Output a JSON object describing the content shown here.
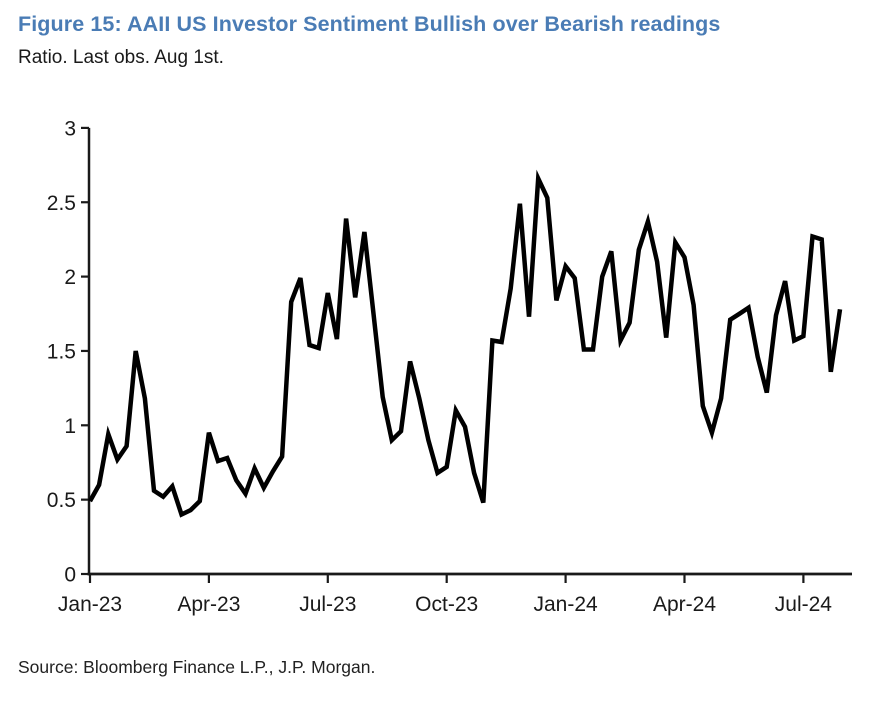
{
  "figure": {
    "title": "Figure 15: AAII US Investor Sentiment Bullish over Bearish readings",
    "subtitle": "Ratio. Last obs. Aug 1st.",
    "source": "Source: Bloomberg Finance L.P., J.P. Morgan.",
    "title_color": "#4a7cb5",
    "text_color": "#1a1a1a",
    "axis_color": "#1a1a1a",
    "line_color": "#000000"
  },
  "chart_data": {
    "type": "line",
    "title": "Figure 15: AAII US Investor Sentiment Bullish over Bearish readings",
    "subtitle": "Ratio. Last obs. Aug 1st.",
    "xlabel": "",
    "ylabel": "Ratio",
    "ylim": [
      0,
      3
    ],
    "yticks": [
      0,
      0.5,
      1,
      1.5,
      2,
      2.5,
      3
    ],
    "ytick_labels": [
      "0",
      "0.5",
      "1",
      "1.5",
      "2",
      "2.5",
      "3"
    ],
    "xtick_labels": [
      "Jan-23",
      "Apr-23",
      "Jul-23",
      "Oct-23",
      "Jan-24",
      "Apr-24",
      "Jul-24"
    ],
    "xtick_week_indices": [
      0,
      13,
      26,
      39,
      52,
      65,
      78
    ],
    "grid": false,
    "legend_position": "none",
    "series": [
      {
        "name": "AAII US Investor Sentiment Bullish over Bearish ratio",
        "x": [
          "2023-01-05",
          "2023-01-12",
          "2023-01-19",
          "2023-01-26",
          "2023-02-02",
          "2023-02-09",
          "2023-02-16",
          "2023-02-23",
          "2023-03-02",
          "2023-03-09",
          "2023-03-16",
          "2023-03-23",
          "2023-03-30",
          "2023-04-06",
          "2023-04-13",
          "2023-04-20",
          "2023-04-27",
          "2023-05-04",
          "2023-05-11",
          "2023-05-18",
          "2023-05-25",
          "2023-06-01",
          "2023-06-08",
          "2023-06-15",
          "2023-06-22",
          "2023-06-29",
          "2023-07-06",
          "2023-07-13",
          "2023-07-20",
          "2023-07-27",
          "2023-08-03",
          "2023-08-10",
          "2023-08-17",
          "2023-08-24",
          "2023-08-31",
          "2023-09-07",
          "2023-09-14",
          "2023-09-21",
          "2023-09-28",
          "2023-10-05",
          "2023-10-12",
          "2023-10-19",
          "2023-10-26",
          "2023-11-02",
          "2023-11-09",
          "2023-11-16",
          "2023-11-23",
          "2023-11-30",
          "2023-12-07",
          "2023-12-14",
          "2023-12-21",
          "2023-12-28",
          "2024-01-04",
          "2024-01-11",
          "2024-01-18",
          "2024-01-25",
          "2024-02-01",
          "2024-02-08",
          "2024-02-15",
          "2024-02-22",
          "2024-02-29",
          "2024-03-07",
          "2024-03-14",
          "2024-03-21",
          "2024-03-28",
          "2024-04-04",
          "2024-04-11",
          "2024-04-18",
          "2024-04-25",
          "2024-05-02",
          "2024-05-09",
          "2024-05-16",
          "2024-05-23",
          "2024-05-30",
          "2024-06-06",
          "2024-06-13",
          "2024-06-20",
          "2024-06-27",
          "2024-07-03",
          "2024-07-11",
          "2024-07-18",
          "2024-07-25",
          "2024-08-01"
        ],
        "values": [
          0.49,
          0.6,
          0.94,
          0.77,
          0.86,
          1.5,
          1.18,
          0.56,
          0.52,
          0.59,
          0.4,
          0.43,
          0.49,
          0.95,
          0.76,
          0.78,
          0.63,
          0.54,
          0.71,
          0.58,
          0.69,
          0.79,
          1.83,
          1.99,
          1.54,
          1.52,
          1.89,
          1.58,
          2.39,
          1.86,
          2.3,
          1.75,
          1.19,
          0.9,
          0.96,
          1.43,
          1.18,
          0.9,
          0.68,
          0.72,
          1.1,
          0.99,
          0.68,
          0.48,
          1.57,
          1.56,
          1.92,
          2.49,
          1.73,
          2.66,
          2.53,
          1.84,
          2.07,
          1.99,
          1.51,
          1.51,
          2.0,
          2.17,
          1.57,
          1.69,
          2.18,
          2.37,
          2.1,
          1.59,
          2.23,
          2.13,
          1.81,
          1.13,
          0.95,
          1.18,
          1.71,
          1.75,
          1.79,
          1.46,
          1.22,
          1.74,
          1.97,
          1.57,
          1.6,
          2.27,
          2.25,
          1.36,
          1.78
        ]
      }
    ]
  }
}
